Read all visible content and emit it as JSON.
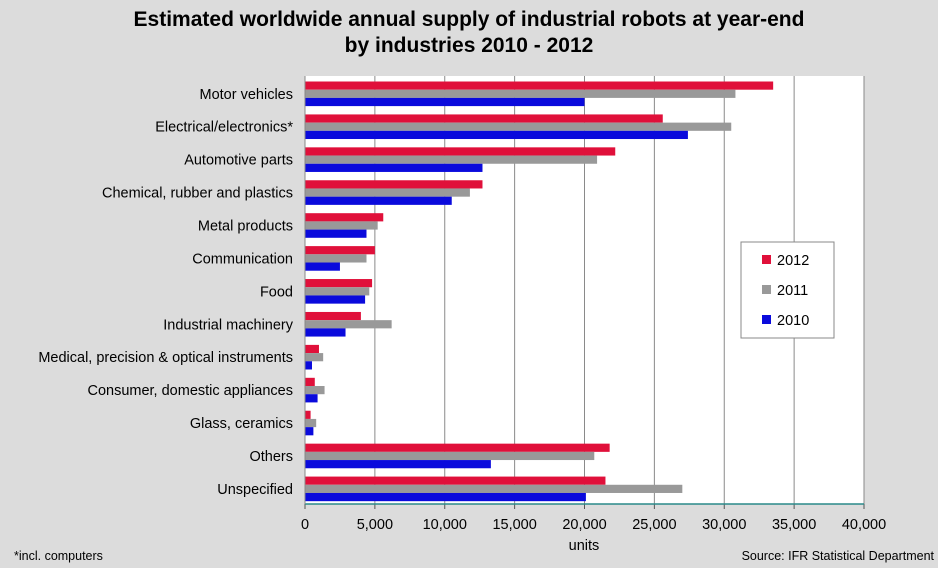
{
  "chart_data": {
    "type": "bar",
    "orientation": "horizontal",
    "title_lines": [
      "Estimated worldwide annual supply of industrial robots at year-end",
      "by industries 2010 - 2012"
    ],
    "xlabel": "units",
    "xlim": [
      0,
      40000
    ],
    "xticks": [
      0,
      5000,
      10000,
      15000,
      20000,
      25000,
      30000,
      35000,
      40000
    ],
    "xtick_labels": [
      "0",
      "5,000",
      "10,000",
      "15,000",
      "20,000",
      "25,000",
      "30,000",
      "35,000",
      "40,000"
    ],
    "grid": "vertical",
    "legend_position": "right",
    "categories": [
      "Motor vehicles",
      "Electrical/electronics*",
      "Automotive parts",
      "Chemical, rubber and plastics",
      "Metal products",
      "Communication",
      "Food",
      "Industrial machinery",
      "Medical, precision & optical instruments",
      "Consumer, domestic appliances",
      "Glass, ceramics",
      "Others",
      "Unspecified"
    ],
    "series": [
      {
        "name": "2012",
        "color": "#e0103a",
        "values": [
          33500,
          25600,
          22200,
          12700,
          5600,
          5000,
          4800,
          4000,
          1000,
          700,
          400,
          21800,
          21500
        ]
      },
      {
        "name": "2011",
        "color": "#999999",
        "values": [
          30800,
          30500,
          20900,
          11800,
          5200,
          4400,
          4600,
          6200,
          1300,
          1400,
          800,
          20700,
          27000
        ]
      },
      {
        "name": "2010",
        "color": "#0a0adc",
        "values": [
          20000,
          27400,
          12700,
          10500,
          4400,
          2500,
          4300,
          2900,
          500,
          900,
          600,
          13300,
          20100
        ]
      }
    ],
    "footnote": "*incl. computers",
    "source": "Source: IFR Statistical Department"
  }
}
